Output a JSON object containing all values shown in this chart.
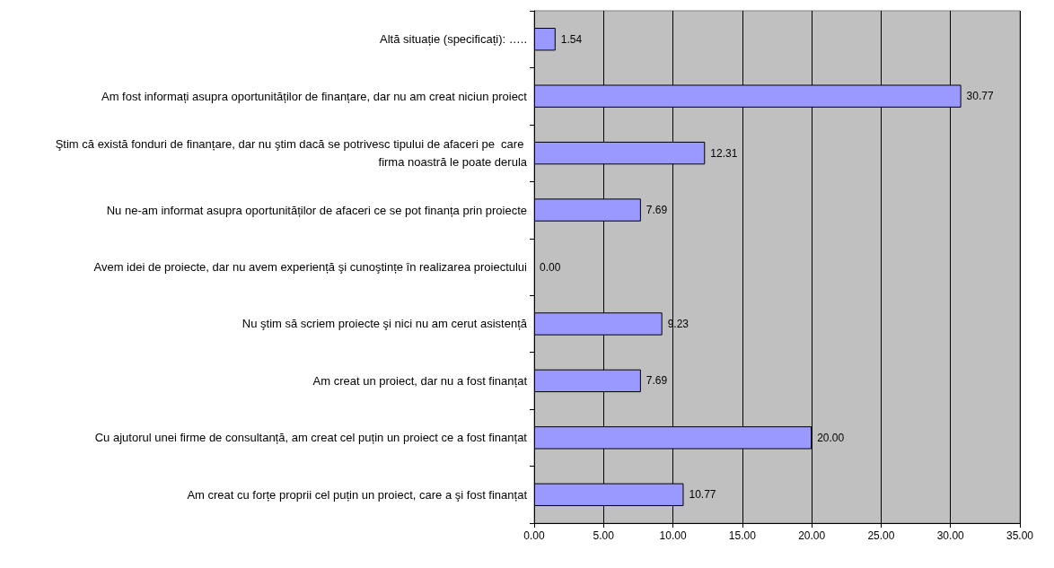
{
  "chart_data": {
    "type": "bar",
    "orientation": "horizontal",
    "categories": [
      "Altă situație (specificați): …..",
      "Am fost informați asupra oportunităților de finanțare, dar nu am creat niciun proiect",
      "Ştim că există fonduri de finanțare, dar nu ştim dacă se potrivesc tipului de afaceri pe  care firma noastră le poate derula",
      "Nu ne-am informat asupra oportunităților de afaceri ce se pot finanța prin proiecte",
      "Avem idei de proiecte, dar nu avem experiență şi cunoştințe în realizarea proiectului",
      "Nu ştim să scriem proiecte şi nici nu am cerut asistență",
      "Am creat un proiect, dar nu a fost finanțat",
      "Cu ajutorul unei firme de consultanță, am creat cel puțin un proiect ce a fost finanțat",
      "Am creat cu forțe proprii cel puțin un proiect, care a şi fost finanțat"
    ],
    "values": [
      1.54,
      30.77,
      12.31,
      7.69,
      0,
      9.23,
      7.69,
      20,
      10.77
    ],
    "value_labels": [
      "1.54",
      "30.77",
      "12.31",
      "7.69",
      "0.00",
      "9.23",
      "7.69",
      "20.00",
      "10.77"
    ],
    "color": "#9999ff",
    "xlim": [
      0,
      35
    ],
    "xticks": [
      {
        "value": 0,
        "label": "0.00"
      },
      {
        "value": 5,
        "label": "5.00"
      },
      {
        "value": 10,
        "label": "10.00"
      },
      {
        "value": 15,
        "label": "15.00"
      },
      {
        "value": 20,
        "label": "20.00"
      },
      {
        "value": 25,
        "label": "25.00"
      },
      {
        "value": 30,
        "label": "30.00"
      },
      {
        "value": 35,
        "label": "35.00"
      }
    ],
    "grid": "x"
  }
}
